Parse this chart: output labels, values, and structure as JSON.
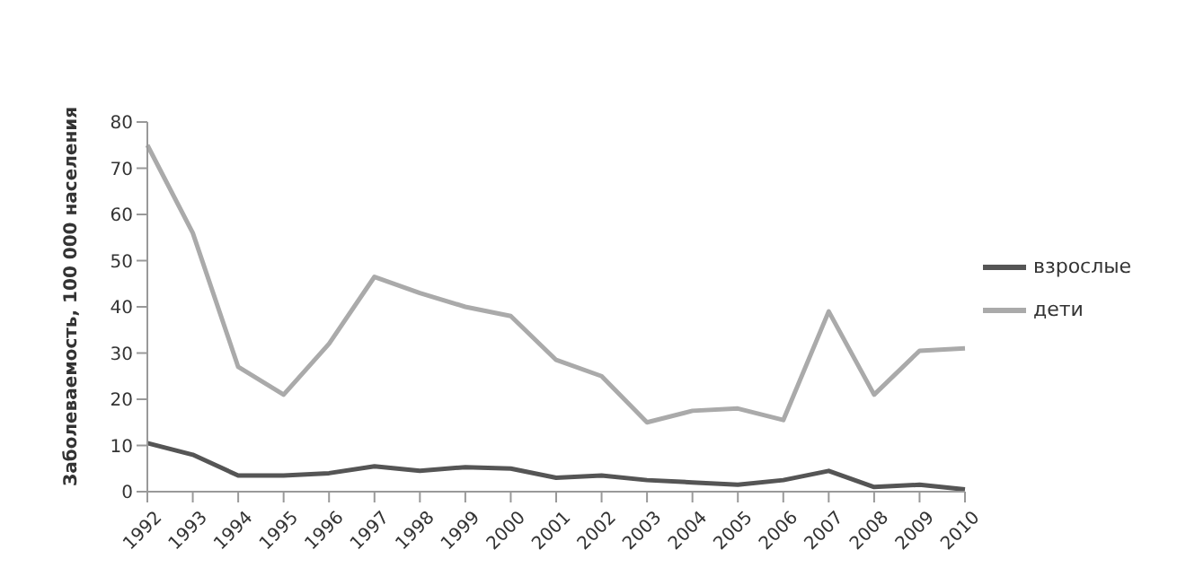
{
  "chart_data": {
    "type": "line",
    "ylabel": "Заболеваемость, 100 000 населения",
    "categories": [
      "1992",
      "1993",
      "1994",
      "1995",
      "1996",
      "1997",
      "1998",
      "1999",
      "2000",
      "2001",
      "2002",
      "2003",
      "2004",
      "2005",
      "2006",
      "2007",
      "2008",
      "2009",
      "2010"
    ],
    "series": [
      {
        "name": "дети",
        "color": "#aaaaaa",
        "values": [
          75,
          56,
          27,
          21,
          32,
          46.5,
          43,
          40,
          38,
          28.5,
          25,
          15,
          17.5,
          18,
          15.5,
          39,
          21,
          30.5,
          31
        ]
      },
      {
        "name": "взрослые",
        "color": "#555555",
        "values": [
          10.5,
          8,
          3.5,
          3.5,
          4,
          5.5,
          4.5,
          5.3,
          5,
          3,
          3.5,
          2.5,
          2,
          1.5,
          2.5,
          4.5,
          1,
          1.5,
          0.5
        ]
      }
    ],
    "ylim": [
      0,
      80
    ],
    "yticks": [
      0,
      10,
      20,
      30,
      40,
      50,
      60,
      70,
      80
    ],
    "grid": false,
    "legend": "right",
    "marker": "none",
    "line_style": "solid"
  }
}
